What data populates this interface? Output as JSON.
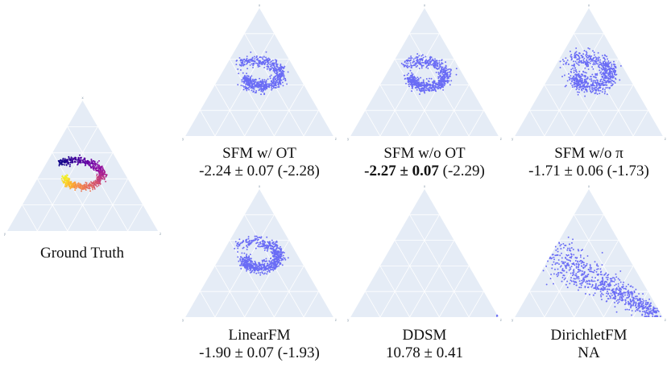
{
  "chart_data": [
    {
      "type": "scatter",
      "id": "gt",
      "coordinate_system": "ternary simplex",
      "title_lines": [
        "Ground Truth"
      ],
      "colormap": "plasma (colored by position along spiral)",
      "grid": true,
      "points_approx": 700
    },
    {
      "type": "scatter",
      "id": "sfm-ot",
      "coordinate_system": "ternary simplex",
      "title_lines": [
        "SFM w/ OT",
        "-2.24 ± 0.07 (-2.28)"
      ],
      "color": "#6a6cf5",
      "grid": true,
      "points_approx": 700
    },
    {
      "type": "scatter",
      "id": "sfm-woot",
      "coordinate_system": "ternary simplex",
      "title_lines": [
        "SFM w/o OT"
      ],
      "title_line2_bold": "-2.27 ± 0.07",
      "title_line2_rest": " (-2.29)",
      "color": "#6a6cf5",
      "grid": true,
      "points_approx": 700
    },
    {
      "type": "scatter",
      "id": "sfm-wopi",
      "coordinate_system": "ternary simplex",
      "title_lines": [
        "SFM w/o π",
        "-1.71 ± 0.06 (-1.73)"
      ],
      "color": "#6a6cf5",
      "grid": true,
      "points_approx": 700
    },
    {
      "type": "scatter",
      "id": "linearfm",
      "coordinate_system": "ternary simplex",
      "title_lines": [
        "LinearFM",
        "-1.90 ± 0.07 (-1.93)"
      ],
      "color": "#6a6cf5",
      "grid": true,
      "points_approx": 700
    },
    {
      "type": "scatter",
      "id": "ddsm",
      "coordinate_system": "ternary simplex",
      "title_lines": [
        "DDSM",
        "10.78 ± 0.41"
      ],
      "color": "#6a6cf5",
      "grid": true,
      "points_approx": 4
    },
    {
      "type": "scatter",
      "id": "dirichletfm",
      "coordinate_system": "ternary simplex",
      "title_lines": [
        "DirichletFM",
        "NA"
      ],
      "color": "#6a6cf5",
      "grid": true,
      "points_approx": 800
    }
  ]
}
